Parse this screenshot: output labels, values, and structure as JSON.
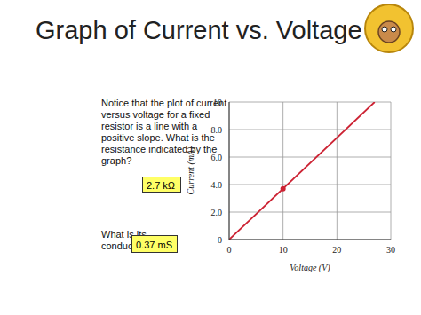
{
  "title": "Graph of Current vs. Voltage",
  "question": "Notice that the plot of current versus voltage for a fixed resistor is a line with a positive slope. What is the resistance indicated by the graph?",
  "answer": "2.7 kΩ",
  "question2": "What is its conductance?",
  "answer2": "0.37 mS",
  "chart_data": {
    "type": "line",
    "x": [
      0,
      27
    ],
    "values": [
      0,
      10
    ],
    "color": "#cc2233",
    "highlight": {
      "x": 10,
      "y": 3.7
    },
    "xlabel": "Voltage (V)",
    "ylabel": "Current (mA)",
    "xlim": [
      0,
      30
    ],
    "xticks": [
      0,
      10,
      20,
      30
    ],
    "ylim": [
      0,
      10
    ],
    "yticks": [
      0,
      {
        "value": 2,
        "label": "2.0"
      },
      {
        "value": 4,
        "label": "4.0"
      },
      {
        "value": 6,
        "label": "6.0"
      },
      {
        "value": 8,
        "label": "8.0"
      },
      10
    ],
    "grid": true
  }
}
